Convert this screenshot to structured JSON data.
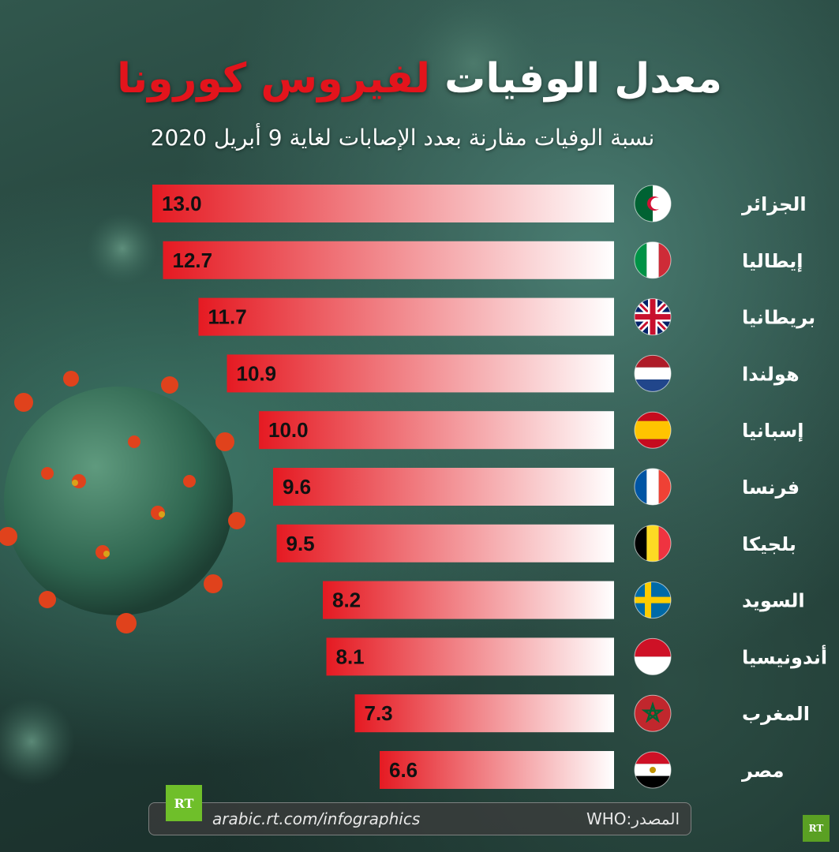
{
  "title": {
    "part1": "معدل الوفيات",
    "part2": "لفيروس كورونا"
  },
  "subtitle": "نسبة الوفيات مقارنة بعدد الإصابات لغاية 9 أبريل 2020",
  "footer": {
    "url": "arabic.rt.com/infographics",
    "source": "المصدر:WHO",
    "logo": "RT"
  },
  "colors": {
    "accent": "#e3141c",
    "bar_start": "#e51a22",
    "bar_end": "#ffffff"
  },
  "chart_data": {
    "type": "bar",
    "orientation": "horizontal",
    "categories": [
      "الجزائر",
      "إيطاليا",
      "بريطانيا",
      "هولندا",
      "إسبانيا",
      "فرنسا",
      "بلجيكا",
      "السويد",
      "أندونيسيا",
      "المغرب",
      "مصر"
    ],
    "values": [
      13.0,
      12.7,
      11.7,
      10.9,
      10.0,
      9.6,
      9.5,
      8.2,
      8.1,
      7.3,
      6.6
    ],
    "value_labels": [
      "13.0",
      "12.7",
      "11.7",
      "10.9",
      "10.0",
      "9.6",
      "9.5",
      "8.2",
      "8.1",
      "7.3",
      "6.6"
    ],
    "flags": [
      "algeria-flag-icon",
      "italy-flag-icon",
      "uk-flag-icon",
      "netherlands-flag-icon",
      "spain-flag-icon",
      "france-flag-icon",
      "belgium-flag-icon",
      "sweden-flag-icon",
      "indonesia-flag-icon",
      "morocco-flag-icon",
      "egypt-flag-icon"
    ],
    "xlim": [
      0,
      13.0
    ],
    "grid": false,
    "legend": "none"
  }
}
